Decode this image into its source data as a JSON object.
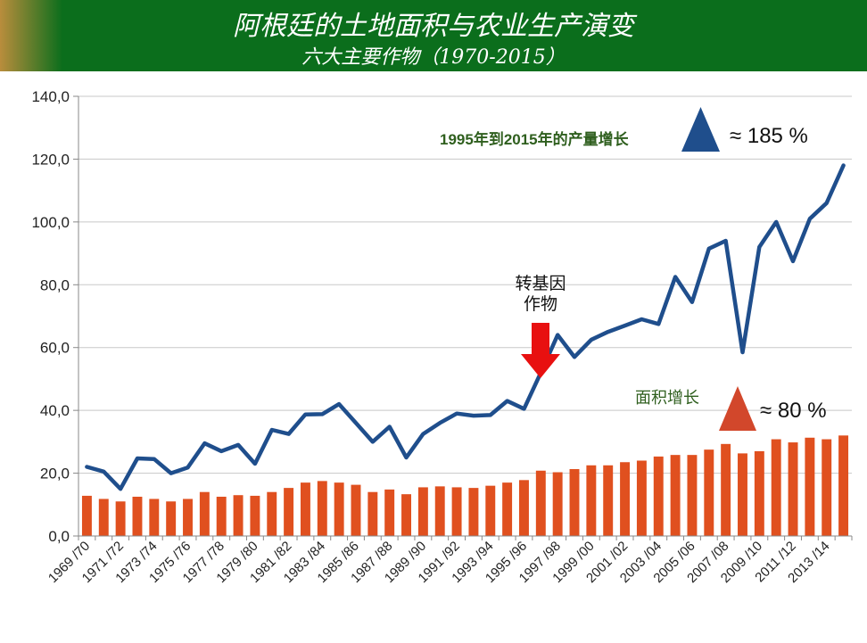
{
  "header": {
    "title": "阿根廷的土地面积与农业生产演变",
    "subtitle": "六大主要作物（1970-2015）"
  },
  "annotations": {
    "production_label": "1995年到2015年的产量增长",
    "production_value": "≈ 185 %",
    "area_label": "面积增长",
    "area_value": "≈ 80 %",
    "gm_label_line1": "转基因",
    "gm_label_line2": "作物"
  },
  "colors": {
    "header_bg": "#0b6e1c",
    "line": "#1f4e8c",
    "bar": "#e0501f",
    "production_triangle": "#1f4e8c",
    "area_triangle": "#d2472b",
    "arrow": "#e81010",
    "label_green": "#2f5f1e"
  },
  "chart_data": {
    "type": "bar",
    "ylim": [
      0,
      140
    ],
    "yticks": [
      "0,0",
      "20,0",
      "40,0",
      "60,0",
      "80,0",
      "100,0",
      "120,0",
      "140,0"
    ],
    "categories": [
      "1969 /70",
      "1970 /71",
      "1971 /72",
      "1972 /73",
      "1973 /74",
      "1974 /75",
      "1975 /76",
      "1976 /77",
      "1977 /78",
      "1978 /79",
      "1979 /80",
      "1980 /81",
      "1981 /82",
      "1982 /83",
      "1983 /84",
      "1984 /85",
      "1985 /86",
      "1986 /87",
      "1987 /88",
      "1988 /89",
      "1989 /90",
      "1990 /91",
      "1991 /92",
      "1992 /93",
      "1993 /94",
      "1994 /95",
      "1995 /96",
      "1996 /97",
      "1997 /98",
      "1998 /99",
      "1999 /00",
      "2000 /01",
      "2001 /02",
      "2002 /03",
      "2003 /04",
      "2004 /05",
      "2005 /06",
      "2006 /07",
      "2007 /08",
      "2008 /09",
      "2009 /10",
      "2010 /11",
      "2011 /12",
      "2012 /13",
      "2013 /14",
      "2014 /15"
    ],
    "xtick_labels": [
      "1969 /70",
      "1971 /72",
      "1973 /74",
      "1975 /76",
      "1977 /78",
      "1979 /80",
      "1981 /82",
      "1983 /84",
      "1985 /86",
      "1987 /88",
      "1989 /90",
      "1991 /92",
      "1993 /94",
      "1995 /96",
      "1997 /98",
      "1999 /00",
      "2001 /02",
      "2003 /04",
      "2005 /06",
      "2007 /08",
      "2009 /10",
      "2011 /12",
      "2013 /14"
    ],
    "series": [
      {
        "type": "bar",
        "values": [
          12.8,
          11.8,
          11.0,
          12.5,
          11.8,
          11.0,
          11.8,
          14.0,
          12.5,
          13.0,
          12.8,
          14.0,
          15.3,
          17.0,
          17.5,
          17.0,
          16.3,
          14.0,
          14.8,
          13.3,
          15.5,
          15.8,
          15.5,
          15.3,
          16.0,
          17.0,
          17.8,
          20.8,
          20.3,
          21.3,
          22.5,
          22.5,
          23.5,
          24.0,
          25.3,
          25.8,
          25.8,
          27.5,
          29.3,
          26.3,
          27.0,
          30.8,
          29.8,
          31.3,
          30.8,
          32.0
        ]
      },
      {
        "type": "line",
        "values": [
          22.0,
          20.5,
          15.0,
          24.7,
          24.5,
          20.0,
          21.8,
          29.5,
          27.0,
          29.0,
          23.0,
          33.8,
          32.5,
          38.7,
          38.8,
          42.0,
          36.0,
          30.0,
          34.8,
          25.0,
          32.5,
          36.0,
          39.0,
          38.3,
          38.5,
          43.0,
          40.5,
          52.0,
          64.0,
          57.0,
          62.5,
          65.0,
          67.0,
          69.0,
          67.5,
          82.5,
          74.5,
          91.5,
          94.0,
          58.5,
          92.0,
          100.0,
          87.5,
          101.0,
          106.0,
          118.0
        ]
      }
    ]
  }
}
